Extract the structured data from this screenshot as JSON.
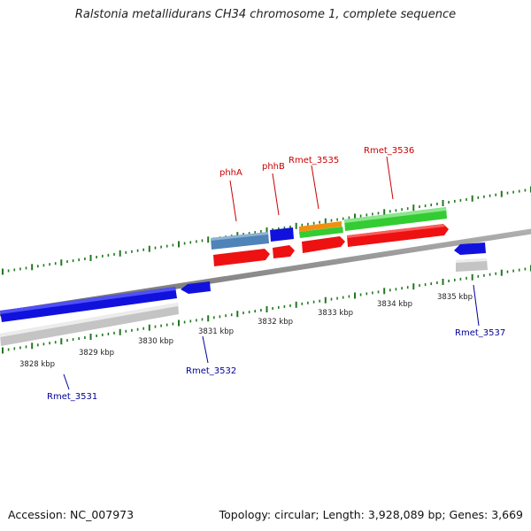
{
  "title": "Ralstonia metallidurans CH34 chromosome 1, complete sequence",
  "footer": {
    "accession": "Accession: NC_007973",
    "summary": "Topology: circular; Length: 3,928,089 bp; Genes: 3,669"
  },
  "scale_labels": [
    "3828 kbp",
    "3829 kbp",
    "3830 kbp",
    "3831 kbp",
    "3832 kbp",
    "3833 kbp",
    "3834 kbp",
    "3835 kbp"
  ],
  "gene_labels": {
    "phhA": "phhA",
    "phhB": "phhB",
    "Rmet_3535": "Rmet_3535",
    "Rmet_3536": "Rmet_3536",
    "Rmet_3531": "Rmet_3531",
    "Rmet_3532": "Rmet_3532",
    "Rmet_3537": "Rmet_3537"
  },
  "colors": {
    "upper_label": "#cc0000",
    "lower_label": "#000099",
    "cds_red": "#ee1111",
    "gene_blue": "#1111dd",
    "gene_steel": "#4f84b8",
    "gene_green": "#33cc33",
    "gene_orange": "#f09010",
    "gene_grey": "#c4c4c4",
    "backbone": "#8a8a8a",
    "tick": "#227722"
  }
}
